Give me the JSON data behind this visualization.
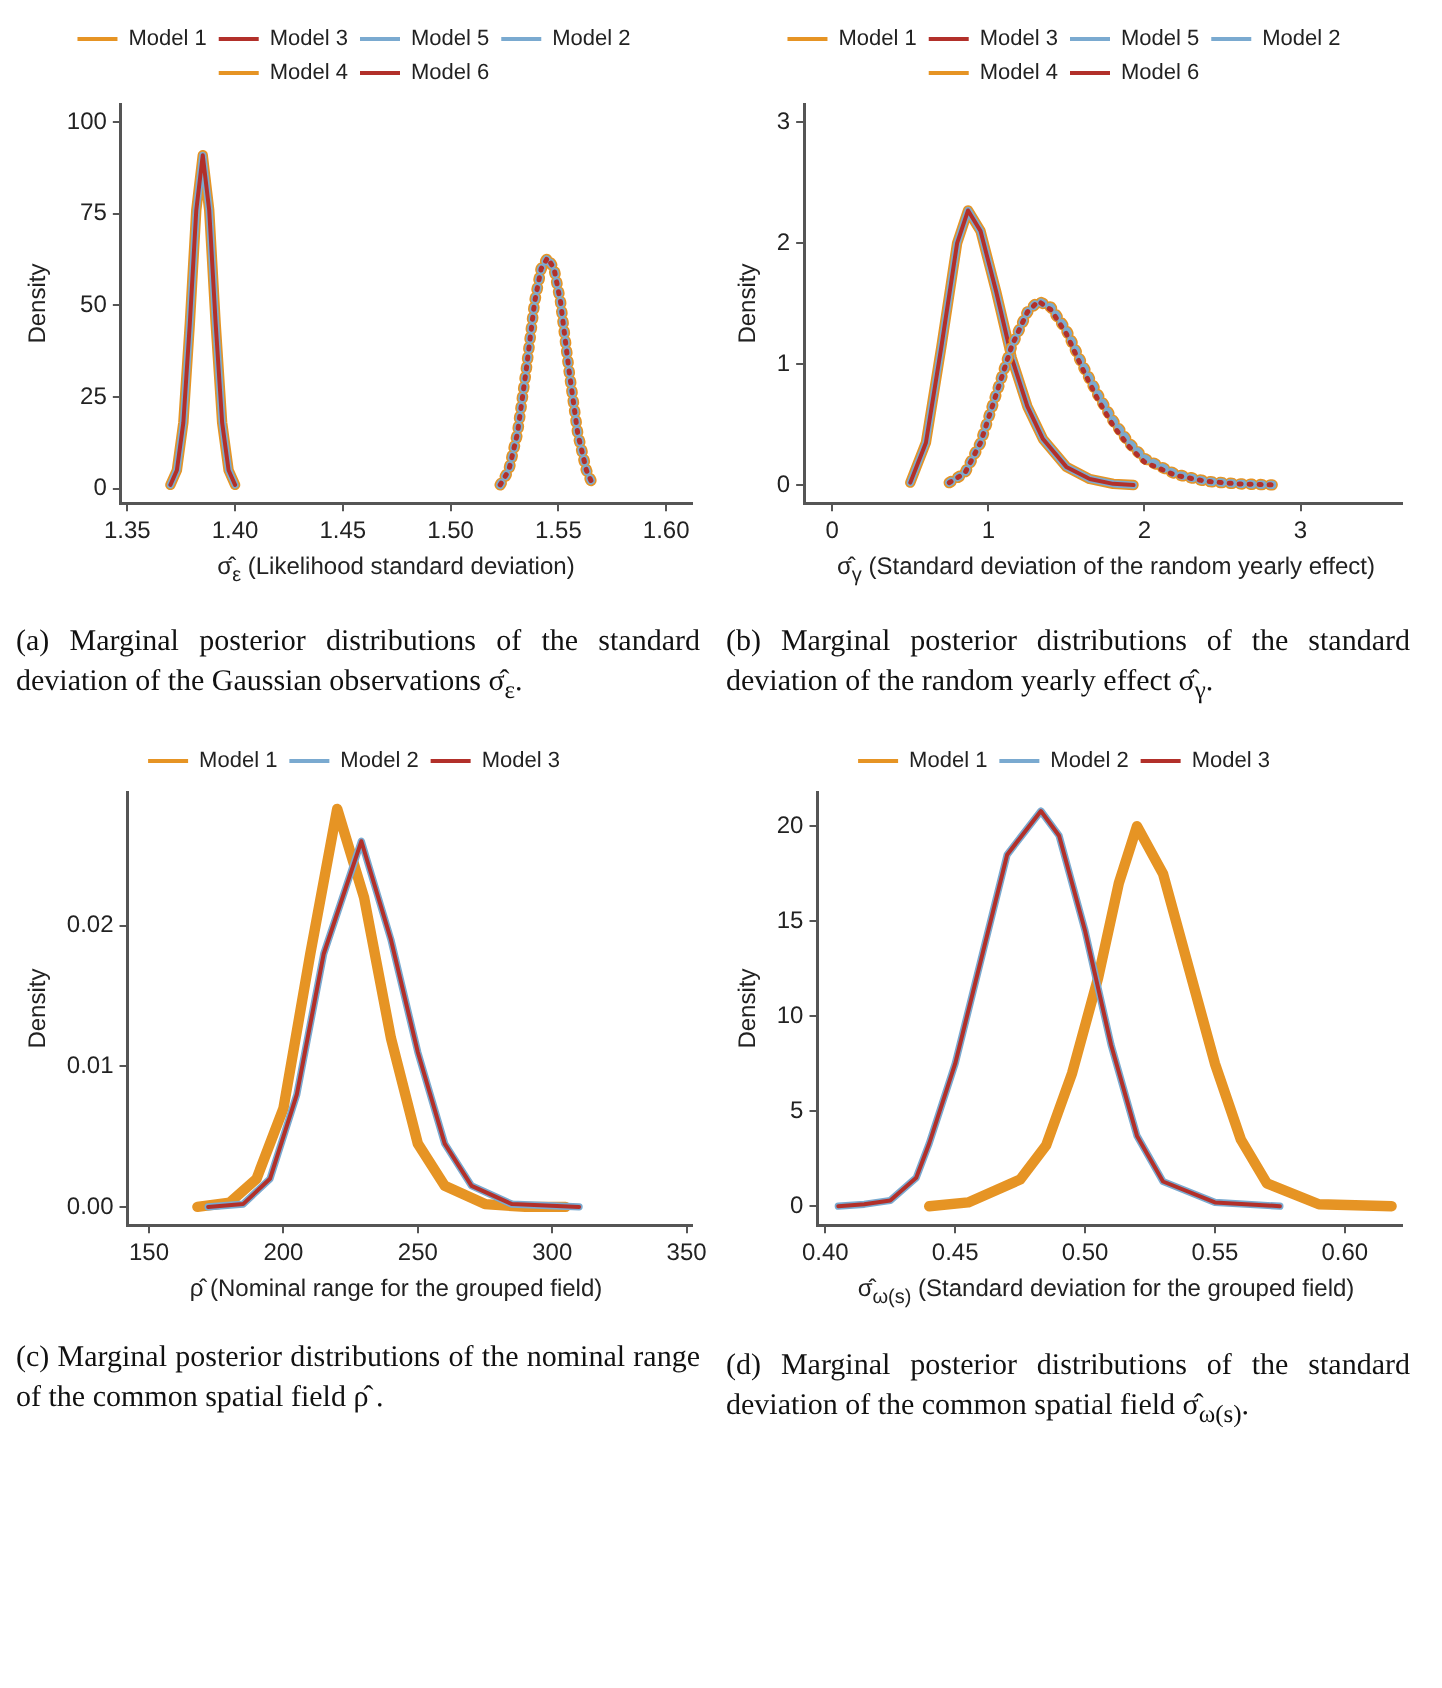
{
  "chart_data": [
    {
      "type": "line",
      "xlabel": "σ̂$_{ε}$ (Likelihood standard deviation)",
      "ylabel": "Density",
      "legend": "top",
      "grid": false,
      "marker": "none",
      "xlim": [
        1.347,
        1.612
      ],
      "xticks": [
        {
          "value": 1.35,
          "label": "1.35"
        },
        {
          "value": 1.4,
          "label": "1.40"
        },
        {
          "value": 1.45,
          "label": "1.45"
        },
        {
          "value": 1.5,
          "label": "1.50"
        },
        {
          "value": 1.55,
          "label": "1.55"
        },
        {
          "value": 1.6,
          "label": "1.60"
        }
      ],
      "ylim": [
        -4,
        105
      ],
      "yticks": [
        0,
        25,
        50,
        75,
        100
      ],
      "annotations": [
        "(a) Marginal posterior distributions of the standard deviation of the Gaussian observations σ̂$_{ε}$."
      ],
      "series": [
        {
          "name": "Model 1",
          "color": "#e69424",
          "line_style": "solid",
          "x": [
            1.37,
            1.373,
            1.376,
            1.379,
            1.382,
            1.385,
            1.388,
            1.391,
            1.394,
            1.397,
            1.4
          ],
          "values": [
            1,
            5,
            18,
            45,
            76,
            91,
            76,
            45,
            18,
            5,
            1
          ]
        },
        {
          "name": "Model 2",
          "color": "#7aaad0",
          "line_style": "solid",
          "x": [
            1.37,
            1.373,
            1.376,
            1.379,
            1.382,
            1.385,
            1.388,
            1.391,
            1.394,
            1.397,
            1.4
          ],
          "values": [
            1,
            5,
            18,
            45,
            76,
            91,
            76,
            45,
            18,
            5,
            1
          ]
        },
        {
          "name": "Model 3",
          "color": "#b2302a",
          "line_style": "solid",
          "x": [
            1.37,
            1.373,
            1.376,
            1.379,
            1.382,
            1.385,
            1.388,
            1.391,
            1.394,
            1.397,
            1.4
          ],
          "values": [
            1,
            5,
            18,
            45,
            76,
            91,
            76,
            45,
            18,
            5,
            1
          ]
        },
        {
          "name": "Model 4",
          "color": "#e69424",
          "line_style": "dotted",
          "x": [
            1.523,
            1.527,
            1.531,
            1.535,
            1.539,
            1.542,
            1.545,
            1.548,
            1.551,
            1.555,
            1.559,
            1.563,
            1.566
          ],
          "values": [
            1,
            5,
            15,
            32,
            51,
            60,
            63,
            60,
            51,
            32,
            15,
            5,
            1
          ]
        },
        {
          "name": "Model 5",
          "color": "#7aaad0",
          "line_style": "dotted",
          "x": [
            1.523,
            1.527,
            1.531,
            1.535,
            1.539,
            1.542,
            1.545,
            1.548,
            1.551,
            1.555,
            1.559,
            1.563,
            1.566
          ],
          "values": [
            1,
            5,
            15,
            32,
            51,
            60,
            63,
            60,
            51,
            32,
            15,
            5,
            1
          ]
        },
        {
          "name": "Model 6",
          "color": "#b2302a",
          "line_style": "dotted",
          "x": [
            1.523,
            1.527,
            1.531,
            1.535,
            1.539,
            1.542,
            1.545,
            1.548,
            1.551,
            1.555,
            1.559,
            1.563,
            1.566
          ],
          "values": [
            1,
            5,
            15,
            32,
            51,
            60,
            63,
            60,
            51,
            32,
            15,
            5,
            1
          ]
        }
      ]
    },
    {
      "type": "line",
      "xlabel": "σ̂$_{γ}$ (Standard deviation of the random yearly effect)",
      "ylabel": "Density",
      "legend": "top",
      "grid": false,
      "marker": "none",
      "xlim": [
        -0.18,
        3.65
      ],
      "xticks": [
        0,
        1,
        2,
        3
      ],
      "ylim": [
        -0.15,
        3.15
      ],
      "yticks": [
        0,
        1,
        2,
        3
      ],
      "annotations": [
        "(b) Marginal posterior distributions of the standard deviation of the random yearly effect σ̂$_{γ}$."
      ],
      "series": [
        {
          "name": "Model 1",
          "color": "#e69424",
          "line_style": "solid",
          "x": [
            0.5,
            0.6,
            0.7,
            0.8,
            0.87,
            0.95,
            1.05,
            1.15,
            1.25,
            1.35,
            1.5,
            1.65,
            1.8,
            1.93
          ],
          "values": [
            0.02,
            0.35,
            1.15,
            2.0,
            2.27,
            2.1,
            1.6,
            1.05,
            0.65,
            0.38,
            0.15,
            0.05,
            0.01,
            0
          ]
        },
        {
          "name": "Model 2",
          "color": "#7aaad0",
          "line_style": "solid",
          "x": [
            0.5,
            0.6,
            0.7,
            0.8,
            0.87,
            0.95,
            1.05,
            1.15,
            1.25,
            1.35,
            1.5,
            1.65,
            1.8,
            1.93
          ],
          "values": [
            0.02,
            0.35,
            1.15,
            2.0,
            2.27,
            2.1,
            1.6,
            1.05,
            0.65,
            0.38,
            0.15,
            0.05,
            0.01,
            0
          ]
        },
        {
          "name": "Model 3",
          "color": "#b2302a",
          "line_style": "solid",
          "x": [
            0.5,
            0.6,
            0.7,
            0.8,
            0.87,
            0.95,
            1.05,
            1.15,
            1.25,
            1.35,
            1.5,
            1.65,
            1.8,
            1.93
          ],
          "values": [
            0.02,
            0.35,
            1.15,
            2.0,
            2.27,
            2.1,
            1.6,
            1.05,
            0.65,
            0.38,
            0.15,
            0.05,
            0.01,
            0
          ]
        },
        {
          "name": "Model 4",
          "color": "#e69424",
          "line_style": "dotted",
          "x": [
            0.75,
            0.85,
            0.95,
            1.05,
            1.15,
            1.25,
            1.32,
            1.4,
            1.5,
            1.6,
            1.7,
            1.8,
            1.9,
            2.0,
            2.2,
            2.4,
            2.6,
            2.85
          ],
          "values": [
            0.02,
            0.1,
            0.35,
            0.75,
            1.15,
            1.43,
            1.52,
            1.47,
            1.28,
            1.0,
            0.75,
            0.53,
            0.35,
            0.22,
            0.09,
            0.03,
            0.01,
            0
          ]
        },
        {
          "name": "Model 5",
          "color": "#7aaad0",
          "line_style": "dotted",
          "x": [
            0.75,
            0.85,
            0.95,
            1.05,
            1.15,
            1.25,
            1.32,
            1.4,
            1.5,
            1.6,
            1.7,
            1.8,
            1.9,
            2.0,
            2.2,
            2.4,
            2.6,
            2.85
          ],
          "values": [
            0.02,
            0.1,
            0.35,
            0.75,
            1.15,
            1.43,
            1.52,
            1.47,
            1.28,
            1.0,
            0.75,
            0.53,
            0.35,
            0.22,
            0.09,
            0.03,
            0.01,
            0
          ]
        },
        {
          "name": "Model 6",
          "color": "#b2302a",
          "line_style": "dotted",
          "x": [
            0.75,
            0.85,
            0.95,
            1.05,
            1.15,
            1.25,
            1.32,
            1.4,
            1.5,
            1.6,
            1.7,
            1.8,
            1.9,
            2.0,
            2.2,
            2.4,
            2.6,
            2.85
          ],
          "values": [
            0.02,
            0.1,
            0.35,
            0.75,
            1.15,
            1.43,
            1.52,
            1.45,
            1.25,
            0.97,
            0.71,
            0.49,
            0.32,
            0.19,
            0.08,
            0.03,
            0.01,
            0
          ]
        }
      ]
    },
    {
      "type": "line",
      "xlabel": "ρ̂ (Nominal range for the grouped field)",
      "ylabel": "Density",
      "legend": "top",
      "grid": false,
      "marker": "none",
      "xlim": [
        142,
        352
      ],
      "xticks": [
        150,
        200,
        250,
        300,
        350
      ],
      "ylim": [
        -0.0013,
        0.0295
      ],
      "yticks": [
        {
          "value": 0,
          "label": "0.00"
        },
        {
          "value": 0.01,
          "label": "0.01"
        },
        {
          "value": 0.02,
          "label": "0.02"
        }
      ],
      "annotations": [
        "(c) Marginal posterior distributions of the nominal range of the common spatial field ρ̂ ."
      ],
      "series": [
        {
          "name": "Model 1",
          "color": "#e69424",
          "line_style": "solid",
          "x": [
            168,
            180,
            190,
            200,
            210,
            220,
            230,
            240,
            250,
            260,
            275,
            290,
            305
          ],
          "values": [
            0,
            0.0003,
            0.002,
            0.007,
            0.018,
            0.0283,
            0.022,
            0.012,
            0.0045,
            0.0015,
            0.0002,
            0,
            0
          ]
        },
        {
          "name": "Model 2",
          "color": "#7aaad0",
          "line_style": "solid",
          "x": [
            172,
            185,
            195,
            205,
            215,
            229,
            240,
            250,
            260,
            270,
            285,
            310
          ],
          "values": [
            0,
            0.0002,
            0.002,
            0.008,
            0.018,
            0.026,
            0.019,
            0.011,
            0.0045,
            0.0015,
            0.0002,
            0
          ]
        },
        {
          "name": "Model 3",
          "color": "#b2302a",
          "line_style": "solid",
          "x": [
            172,
            185,
            195,
            205,
            215,
            229,
            240,
            250,
            260,
            270,
            285,
            310
          ],
          "values": [
            0,
            0.0002,
            0.002,
            0.008,
            0.018,
            0.026,
            0.019,
            0.011,
            0.0045,
            0.0015,
            0.0002,
            0
          ]
        }
      ]
    },
    {
      "type": "line",
      "xlabel": "σ̂$_{ω(s)}$ (Standard deviation for the grouped field)",
      "ylabel": "Density",
      "legend": "top",
      "grid": false,
      "marker": "none",
      "xlim": [
        0.397,
        0.622
      ],
      "xticks": [
        {
          "value": 0.4,
          "label": "0.40"
        },
        {
          "value": 0.45,
          "label": "0.45"
        },
        {
          "value": 0.5,
          "label": "0.50"
        },
        {
          "value": 0.55,
          "label": "0.55"
        },
        {
          "value": 0.6,
          "label": "0.60"
        }
      ],
      "ylim": [
        -1,
        21.8
      ],
      "yticks": [
        0,
        5,
        10,
        15,
        20
      ],
      "annotations": [
        "(d) Marginal posterior distributions of the standard deviation of the common spatial field σ̂$_{ω(s)}$."
      ],
      "series": [
        {
          "name": "Model 1",
          "color": "#e69424",
          "line_style": "solid",
          "x": [
            0.44,
            0.455,
            0.475,
            0.485,
            0.495,
            0.505,
            0.513,
            0.52,
            0.53,
            0.54,
            0.55,
            0.56,
            0.57,
            0.59,
            0.618
          ],
          "values": [
            0,
            0.2,
            1.4,
            3.2,
            7,
            12,
            17,
            20,
            17.5,
            12.5,
            7.5,
            3.5,
            1.2,
            0.1,
            0
          ]
        },
        {
          "name": "Model 2",
          "color": "#7aaad0",
          "line_style": "solid",
          "x": [
            0.405,
            0.415,
            0.425,
            0.435,
            0.44,
            0.45,
            0.46,
            0.47,
            0.483,
            0.49,
            0.5,
            0.51,
            0.52,
            0.53,
            0.55,
            0.575
          ],
          "values": [
            0,
            0.1,
            0.3,
            1.5,
            3.3,
            7.5,
            13,
            18.5,
            20.8,
            19.5,
            14.5,
            8.5,
            3.7,
            1.3,
            0.2,
            0
          ]
        },
        {
          "name": "Model 3",
          "color": "#b2302a",
          "line_style": "solid",
          "x": [
            0.405,
            0.415,
            0.425,
            0.435,
            0.44,
            0.45,
            0.46,
            0.47,
            0.483,
            0.49,
            0.5,
            0.51,
            0.52,
            0.53,
            0.55,
            0.575
          ],
          "values": [
            0,
            0.1,
            0.3,
            1.5,
            3.3,
            7.5,
            13,
            18.5,
            20.8,
            19.5,
            14.5,
            8.5,
            3.7,
            1.3,
            0.2,
            0
          ]
        }
      ]
    }
  ]
}
